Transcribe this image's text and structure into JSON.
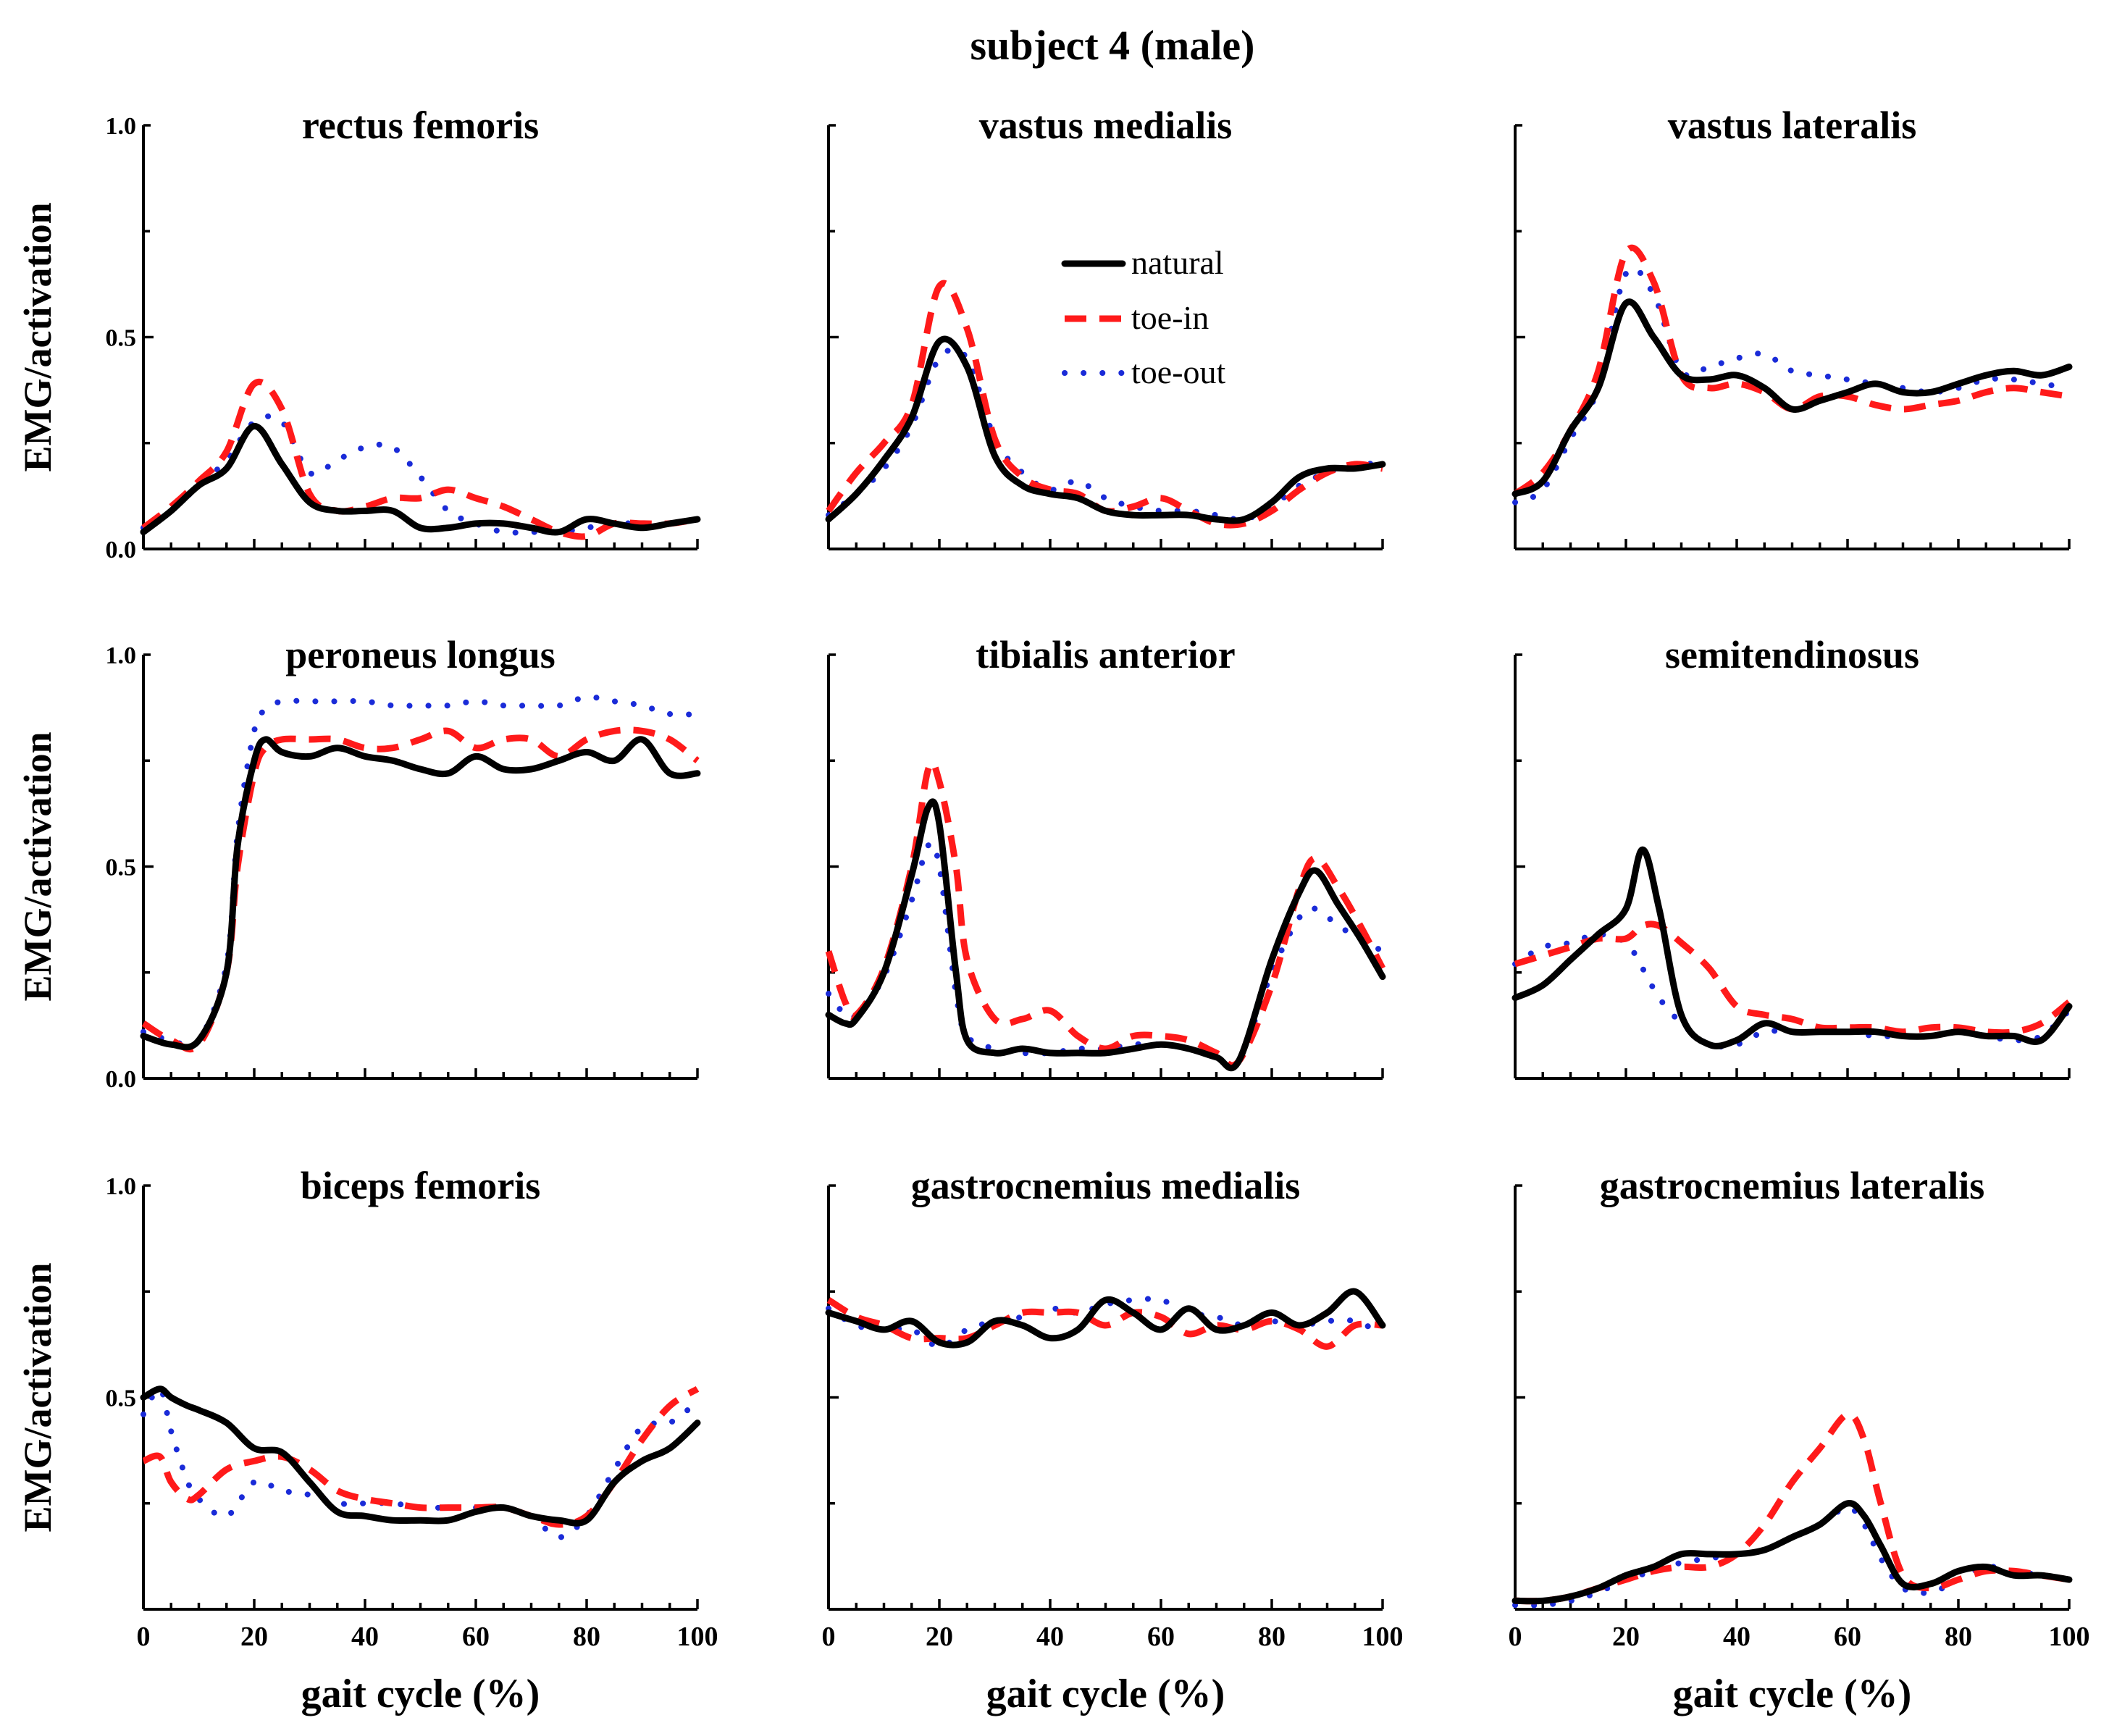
{
  "figure_title": "subject 4 (male)",
  "y_axis_label": "EMG/activation",
  "x_axis_label": "gait cycle (%)",
  "colors": {
    "natural": "#000000",
    "toe-in": "#ff1a1a",
    "toe-out": "#1a2bd8"
  },
  "chart_data": [
    {
      "type": "line",
      "title": "rectus femoris",
      "xlabel": "",
      "ylabel": "EMG/activation",
      "xlim": [
        0,
        100
      ],
      "ylim": [
        0,
        1.0
      ],
      "yticks": [
        "0.0",
        "0.5",
        "1.0"
      ],
      "xticks": [],
      "x": [
        0,
        5,
        10,
        15,
        20,
        25,
        30,
        35,
        40,
        45,
        50,
        55,
        60,
        65,
        70,
        75,
        80,
        85,
        90,
        95,
        100
      ],
      "legend": [
        "natural",
        "toe-in",
        "toe-out"
      ],
      "series": [
        {
          "name": "natural",
          "values": [
            0.04,
            0.09,
            0.15,
            0.19,
            0.29,
            0.2,
            0.11,
            0.09,
            0.09,
            0.09,
            0.05,
            0.05,
            0.06,
            0.06,
            0.05,
            0.04,
            0.07,
            0.06,
            0.05,
            0.06,
            0.07
          ]
        },
        {
          "name": "toe-in",
          "values": [
            0.05,
            0.1,
            0.16,
            0.23,
            0.39,
            0.33,
            0.13,
            0.09,
            0.1,
            0.12,
            0.12,
            0.14,
            0.12,
            0.1,
            0.07,
            0.04,
            0.03,
            0.06,
            0.06,
            0.06,
            0.07
          ]
        },
        {
          "name": "toe-out",
          "values": [
            0.05,
            0.09,
            0.15,
            0.21,
            0.3,
            0.3,
            0.18,
            0.21,
            0.24,
            0.24,
            0.17,
            0.09,
            0.06,
            0.04,
            0.04,
            0.04,
            0.05,
            0.06,
            0.06,
            0.06,
            0.07
          ]
        }
      ]
    },
    {
      "type": "line",
      "title": "vastus medialis",
      "xlabel": "",
      "ylabel": "",
      "xlim": [
        0,
        100
      ],
      "ylim": [
        0,
        1.0
      ],
      "yticks": [],
      "xticks": [],
      "x": [
        0,
        5,
        10,
        15,
        20,
        25,
        30,
        35,
        40,
        45,
        50,
        55,
        60,
        65,
        70,
        75,
        80,
        85,
        90,
        95,
        100
      ],
      "legend": [
        "natural",
        "toe-in",
        "toe-out"
      ],
      "series": [
        {
          "name": "natural",
          "values": [
            0.07,
            0.13,
            0.21,
            0.31,
            0.49,
            0.43,
            0.22,
            0.15,
            0.13,
            0.12,
            0.09,
            0.08,
            0.08,
            0.08,
            0.07,
            0.07,
            0.11,
            0.17,
            0.19,
            0.19,
            0.2
          ]
        },
        {
          "name": "toe-in",
          "values": [
            0.09,
            0.18,
            0.25,
            0.34,
            0.62,
            0.52,
            0.26,
            0.17,
            0.14,
            0.13,
            0.09,
            0.1,
            0.12,
            0.09,
            0.06,
            0.06,
            0.09,
            0.14,
            0.18,
            0.2,
            0.19
          ]
        },
        {
          "name": "toe-out",
          "values": [
            0.08,
            0.13,
            0.19,
            0.29,
            0.45,
            0.45,
            0.26,
            0.18,
            0.14,
            0.16,
            0.12,
            0.1,
            0.09,
            0.09,
            0.08,
            0.07,
            0.1,
            0.15,
            0.18,
            0.2,
            0.2
          ]
        }
      ]
    },
    {
      "type": "line",
      "title": "vastus lateralis",
      "xlabel": "",
      "ylabel": "",
      "xlim": [
        0,
        100
      ],
      "ylim": [
        0,
        1.0
      ],
      "yticks": [],
      "xticks": [],
      "x": [
        0,
        5,
        10,
        15,
        20,
        25,
        30,
        35,
        40,
        45,
        50,
        55,
        60,
        65,
        70,
        75,
        80,
        85,
        90,
        95,
        100
      ],
      "legend": [
        "natural",
        "toe-in",
        "toe-out"
      ],
      "series": [
        {
          "name": "natural",
          "values": [
            0.13,
            0.16,
            0.28,
            0.38,
            0.58,
            0.5,
            0.41,
            0.4,
            0.41,
            0.38,
            0.33,
            0.35,
            0.37,
            0.39,
            0.37,
            0.37,
            0.39,
            0.41,
            0.42,
            0.41,
            0.43
          ]
        },
        {
          "name": "toe-in",
          "values": [
            0.13,
            0.18,
            0.28,
            0.42,
            0.7,
            0.63,
            0.41,
            0.38,
            0.39,
            0.37,
            0.33,
            0.36,
            0.36,
            0.34,
            0.33,
            0.34,
            0.35,
            0.37,
            0.38,
            0.37,
            0.36
          ]
        },
        {
          "name": "toe-out",
          "values": [
            0.11,
            0.14,
            0.26,
            0.38,
            0.65,
            0.6,
            0.42,
            0.43,
            0.45,
            0.46,
            0.42,
            0.41,
            0.4,
            0.39,
            0.38,
            0.37,
            0.38,
            0.4,
            0.4,
            0.39,
            0.38
          ]
        }
      ]
    },
    {
      "type": "line",
      "title": "peroneus longus",
      "xlabel": "",
      "ylabel": "EMG/activation",
      "xlim": [
        0,
        100
      ],
      "ylim": [
        0,
        1.0
      ],
      "yticks": [
        "0.0",
        "0.5",
        "1.0"
      ],
      "xticks": [],
      "x": [
        0,
        5,
        10,
        15,
        17,
        20,
        22,
        25,
        30,
        35,
        40,
        45,
        50,
        55,
        60,
        65,
        70,
        75,
        80,
        85,
        90,
        95,
        100
      ],
      "legend": [
        "natural",
        "toe-in",
        "toe-out"
      ],
      "series": [
        {
          "name": "natural",
          "values": [
            0.1,
            0.08,
            0.09,
            0.25,
            0.55,
            0.75,
            0.8,
            0.77,
            0.76,
            0.78,
            0.76,
            0.75,
            0.73,
            0.72,
            0.76,
            0.73,
            0.73,
            0.75,
            0.77,
            0.75,
            0.8,
            0.72,
            0.72
          ]
        },
        {
          "name": "toe-in",
          "values": [
            0.13,
            0.09,
            0.08,
            0.25,
            0.5,
            0.72,
            0.78,
            0.8,
            0.8,
            0.8,
            0.78,
            0.78,
            0.8,
            0.82,
            0.78,
            0.8,
            0.8,
            0.76,
            0.8,
            0.82,
            0.82,
            0.8,
            0.75
          ]
        },
        {
          "name": "toe-out",
          "values": [
            0.11,
            0.09,
            0.09,
            0.27,
            0.58,
            0.82,
            0.87,
            0.89,
            0.89,
            0.89,
            0.89,
            0.88,
            0.88,
            0.88,
            0.89,
            0.88,
            0.88,
            0.88,
            0.9,
            0.89,
            0.88,
            0.86,
            0.86
          ]
        }
      ]
    },
    {
      "type": "line",
      "title": "tibialis anterior",
      "xlabel": "",
      "ylabel": "",
      "xlim": [
        0,
        100
      ],
      "ylim": [
        0,
        1.0
      ],
      "yticks": [],
      "xticks": [],
      "x": [
        0,
        3,
        5,
        10,
        15,
        18,
        20,
        23,
        25,
        30,
        35,
        40,
        45,
        50,
        55,
        60,
        65,
        70,
        74,
        80,
        85,
        88,
        92,
        96,
        100
      ],
      "legend": [
        "natural",
        "toe-in",
        "toe-out"
      ],
      "series": [
        {
          "name": "natural",
          "values": [
            0.15,
            0.13,
            0.14,
            0.25,
            0.48,
            0.64,
            0.6,
            0.25,
            0.09,
            0.06,
            0.07,
            0.06,
            0.06,
            0.06,
            0.07,
            0.08,
            0.07,
            0.05,
            0.04,
            0.28,
            0.44,
            0.49,
            0.41,
            0.33,
            0.24
          ]
        },
        {
          "name": "toe-in",
          "values": [
            0.3,
            0.18,
            0.15,
            0.26,
            0.5,
            0.73,
            0.7,
            0.5,
            0.28,
            0.14,
            0.14,
            0.16,
            0.1,
            0.07,
            0.1,
            0.1,
            0.09,
            0.06,
            0.04,
            0.22,
            0.45,
            0.52,
            0.45,
            0.36,
            0.26
          ]
        },
        {
          "name": "toe-out",
          "values": [
            0.2,
            0.15,
            0.15,
            0.24,
            0.42,
            0.55,
            0.5,
            0.2,
            0.1,
            0.07,
            0.06,
            0.06,
            0.07,
            0.07,
            0.08,
            0.08,
            0.07,
            0.05,
            0.04,
            0.25,
            0.38,
            0.4,
            0.36,
            0.33,
            0.3
          ]
        }
      ]
    },
    {
      "type": "line",
      "title": "semitendinosus",
      "xlabel": "",
      "ylabel": "",
      "xlim": [
        0,
        100
      ],
      "ylim": [
        0,
        1.0
      ],
      "yticks": [],
      "xticks": [],
      "x": [
        0,
        5,
        10,
        15,
        20,
        23,
        26,
        30,
        35,
        40,
        45,
        50,
        55,
        60,
        65,
        70,
        75,
        80,
        85,
        90,
        95,
        100
      ],
      "legend": [
        "natural",
        "toe-in",
        "toe-out"
      ],
      "series": [
        {
          "name": "natural",
          "values": [
            0.19,
            0.22,
            0.28,
            0.34,
            0.4,
            0.54,
            0.4,
            0.15,
            0.08,
            0.09,
            0.13,
            0.11,
            0.11,
            0.11,
            0.11,
            0.1,
            0.1,
            0.11,
            0.1,
            0.1,
            0.09,
            0.17
          ]
        },
        {
          "name": "toe-in",
          "values": [
            0.27,
            0.29,
            0.31,
            0.33,
            0.33,
            0.36,
            0.36,
            0.32,
            0.26,
            0.17,
            0.15,
            0.14,
            0.12,
            0.12,
            0.12,
            0.11,
            0.12,
            0.12,
            0.11,
            0.11,
            0.13,
            0.18
          ]
        },
        {
          "name": "toe-out",
          "values": [
            0.27,
            0.31,
            0.32,
            0.34,
            0.32,
            0.26,
            0.19,
            0.13,
            0.08,
            0.08,
            0.11,
            0.11,
            0.11,
            0.11,
            0.1,
            0.1,
            0.1,
            0.11,
            0.1,
            0.09,
            0.1,
            0.16
          ]
        }
      ]
    },
    {
      "type": "line",
      "title": "biceps femoris",
      "xlabel": "gait cycle (%)",
      "ylabel": "EMG/activation",
      "xlim": [
        0,
        100
      ],
      "ylim": [
        0,
        1.0
      ],
      "yticks": [
        "0.5",
        "1.0"
      ],
      "xticks": [
        "0",
        "20",
        "40",
        "60",
        "80",
        "100"
      ],
      "x": [
        0,
        3,
        5,
        8,
        10,
        15,
        20,
        25,
        30,
        35,
        40,
        45,
        50,
        55,
        60,
        65,
        70,
        75,
        80,
        85,
        90,
        95,
        100
      ],
      "legend": [
        "natural",
        "toe-in",
        "toe-out"
      ],
      "series": [
        {
          "name": "natural",
          "values": [
            0.5,
            0.52,
            0.5,
            0.48,
            0.47,
            0.44,
            0.38,
            0.37,
            0.3,
            0.23,
            0.22,
            0.21,
            0.21,
            0.21,
            0.23,
            0.24,
            0.22,
            0.21,
            0.21,
            0.3,
            0.35,
            0.38,
            0.44
          ]
        },
        {
          "name": "toe-in",
          "values": [
            0.35,
            0.36,
            0.3,
            0.26,
            0.27,
            0.33,
            0.35,
            0.36,
            0.33,
            0.28,
            0.26,
            0.25,
            0.24,
            0.24,
            0.24,
            0.24,
            0.22,
            0.2,
            0.22,
            0.3,
            0.4,
            0.48,
            0.52
          ]
        },
        {
          "name": "toe-out",
          "values": [
            0.46,
            0.52,
            0.42,
            0.3,
            0.26,
            0.22,
            0.3,
            0.28,
            0.27,
            0.25,
            0.25,
            0.25,
            0.24,
            0.24,
            0.24,
            0.24,
            0.22,
            0.17,
            0.22,
            0.33,
            0.43,
            0.44,
            0.49
          ]
        }
      ]
    },
    {
      "type": "line",
      "title": "gastrocnemius medialis",
      "xlabel": "gait cycle (%)",
      "ylabel": "",
      "xlim": [
        0,
        100
      ],
      "ylim": [
        0,
        1.0
      ],
      "yticks": [],
      "xticks": [
        "0",
        "20",
        "40",
        "60",
        "80",
        "100"
      ],
      "x": [
        0,
        5,
        10,
        15,
        20,
        25,
        30,
        35,
        40,
        45,
        50,
        55,
        60,
        65,
        70,
        75,
        80,
        85,
        90,
        95,
        100
      ],
      "legend": [
        "natural",
        "toe-in",
        "toe-out"
      ],
      "series": [
        {
          "name": "natural",
          "values": [
            0.7,
            0.68,
            0.66,
            0.68,
            0.63,
            0.63,
            0.68,
            0.67,
            0.64,
            0.66,
            0.73,
            0.7,
            0.66,
            0.71,
            0.66,
            0.67,
            0.7,
            0.67,
            0.7,
            0.75,
            0.67
          ]
        },
        {
          "name": "toe-in",
          "values": [
            0.73,
            0.69,
            0.67,
            0.64,
            0.64,
            0.64,
            0.67,
            0.7,
            0.7,
            0.7,
            0.67,
            0.7,
            0.69,
            0.65,
            0.67,
            0.66,
            0.68,
            0.66,
            0.62,
            0.67,
            0.67
          ]
        },
        {
          "name": "toe-out",
          "values": [
            0.71,
            0.67,
            0.66,
            0.66,
            0.62,
            0.66,
            0.68,
            0.69,
            0.71,
            0.7,
            0.72,
            0.73,
            0.73,
            0.7,
            0.69,
            0.67,
            0.68,
            0.67,
            0.68,
            0.68,
            0.65
          ]
        }
      ]
    },
    {
      "type": "line",
      "title": "gastrocnemius lateralis",
      "xlabel": "gait cycle (%)",
      "ylabel": "",
      "xlim": [
        0,
        100
      ],
      "ylim": [
        0,
        1.0
      ],
      "yticks": [],
      "xticks": [
        "0",
        "20",
        "40",
        "60",
        "80",
        "100"
      ],
      "x": [
        0,
        5,
        10,
        15,
        20,
        25,
        30,
        35,
        40,
        45,
        50,
        55,
        60,
        63,
        66,
        70,
        75,
        80,
        85,
        90,
        95,
        100
      ],
      "legend": [
        "natural",
        "toe-in",
        "toe-out"
      ],
      "series": [
        {
          "name": "natural",
          "values": [
            0.02,
            0.02,
            0.03,
            0.05,
            0.08,
            0.1,
            0.13,
            0.13,
            0.13,
            0.14,
            0.17,
            0.2,
            0.25,
            0.22,
            0.15,
            0.06,
            0.06,
            0.09,
            0.1,
            0.08,
            0.08,
            0.07
          ]
        },
        {
          "name": "toe-in",
          "values": [
            0.02,
            0.02,
            0.03,
            0.05,
            0.07,
            0.09,
            0.1,
            0.1,
            0.13,
            0.2,
            0.3,
            0.38,
            0.46,
            0.4,
            0.25,
            0.08,
            0.05,
            0.07,
            0.09,
            0.09,
            0.08,
            0.07
          ]
        },
        {
          "name": "toe-out",
          "values": [
            0.01,
            0.01,
            0.02,
            0.04,
            0.07,
            0.09,
            0.11,
            0.12,
            0.13,
            0.14,
            0.17,
            0.2,
            0.24,
            0.2,
            0.12,
            0.05,
            0.04,
            0.07,
            0.1,
            0.09,
            0.08,
            0.07
          ]
        }
      ]
    }
  ]
}
